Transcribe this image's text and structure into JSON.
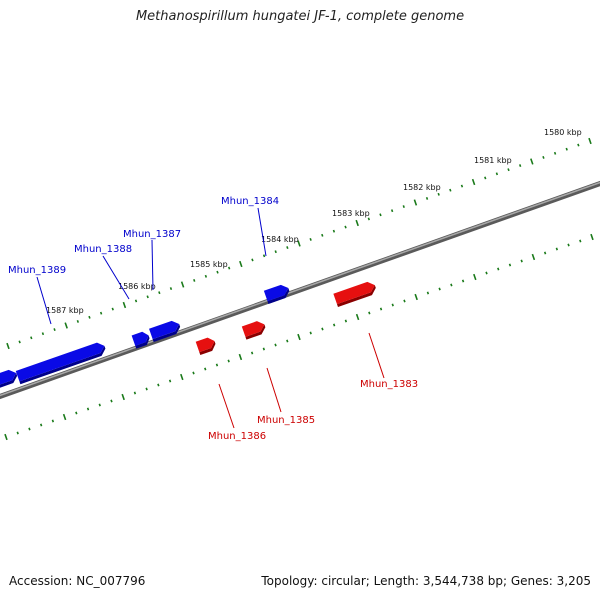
{
  "title": "Methanospirillum hungatei JF-1, complete genome",
  "footer": {
    "accession": "Accession: NC_007796",
    "summary": "Topology: circular; Length: 3,544,738 bp; Genes: 3,205"
  },
  "colors": {
    "forward_strand": "#0000ee",
    "reverse_strand": "#ee0000",
    "ticks": "#1a7a1a",
    "backbone": "#808080"
  },
  "scale_labels": [
    "1580 kbp",
    "1581 kbp",
    "1582 kbp",
    "1583 kbp",
    "1584 kbp",
    "1585 kbp",
    "1586 kbp",
    "1587 kbp"
  ],
  "genes": [
    {
      "name": "Mhun_1383",
      "strand": "reverse"
    },
    {
      "name": "Mhun_1384",
      "strand": "forward"
    },
    {
      "name": "Mhun_1385",
      "strand": "reverse"
    },
    {
      "name": "Mhun_1386",
      "strand": "reverse"
    },
    {
      "name": "Mhun_1387",
      "strand": "forward"
    },
    {
      "name": "Mhun_1388",
      "strand": "forward"
    },
    {
      "name": "Mhun_1389",
      "strand": "forward"
    }
  ]
}
